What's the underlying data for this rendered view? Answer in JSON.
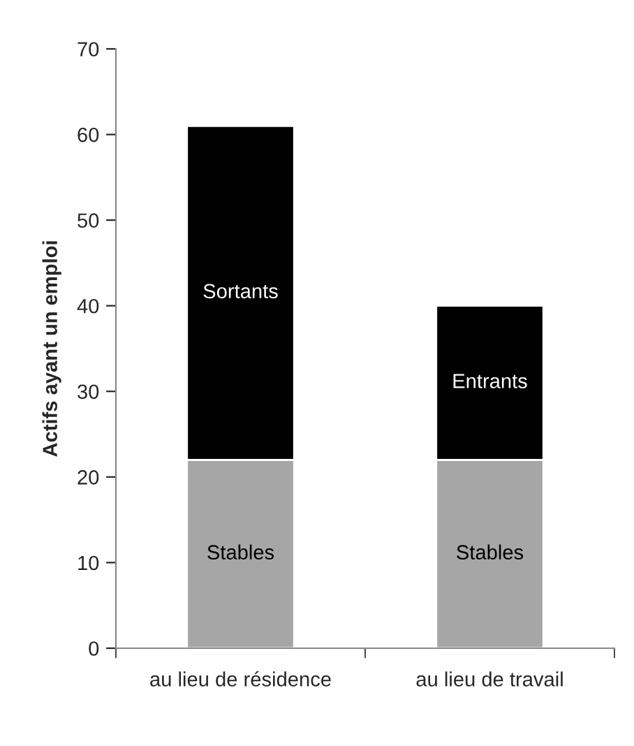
{
  "chart_data": {
    "type": "bar",
    "stacked": true,
    "ylabel": "Actifs ayant un emploi",
    "categories": [
      "au lieu de résidence",
      "au lieu de travail"
    ],
    "series": [
      {
        "color": "#a6a6a6",
        "values": [
          22,
          22
        ],
        "value_labels": [
          "Stables",
          "Stables"
        ]
      },
      {
        "color": "#000000",
        "values": [
          39,
          18
        ],
        "value_labels": [
          "Sortants",
          "Entrants"
        ]
      }
    ],
    "ylim": [
      0,
      70
    ],
    "yticks": [
      0,
      10,
      20,
      30,
      40,
      50,
      60,
      70
    ],
    "grid": false
  }
}
